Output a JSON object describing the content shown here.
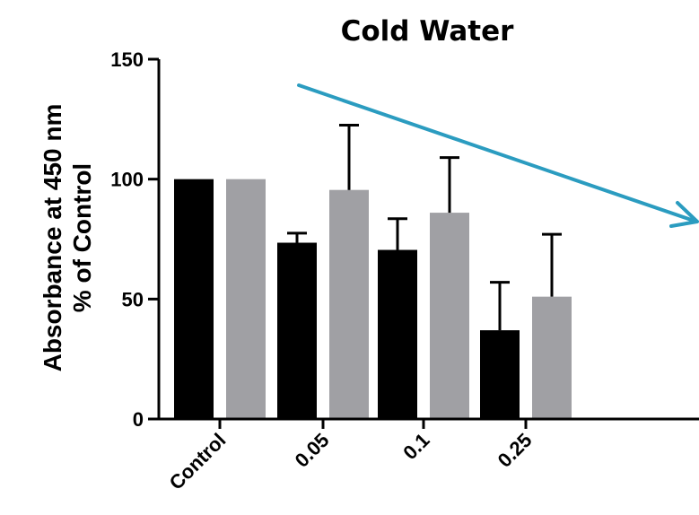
{
  "chart_data": {
    "type": "bar",
    "title": "Cold Water",
    "ylabel_lines": [
      "Absorbance at 450 nm",
      "% of Control"
    ],
    "xlabel": "",
    "categories": [
      "Control",
      "0.05",
      "0.1",
      "0.25"
    ],
    "series": [
      {
        "color": "#000000",
        "values": [
          100,
          73.5,
          70.5,
          37
        ],
        "errors": [
          0,
          4,
          13,
          20
        ]
      },
      {
        "color": "#a0a0a4",
        "values": [
          100,
          95.5,
          86,
          51
        ],
        "errors": [
          0,
          27,
          23,
          26
        ]
      }
    ],
    "ylim": [
      0,
      150
    ],
    "yticks": [
      0,
      50,
      100,
      150
    ],
    "ytick_labels": [
      "0",
      "50",
      "100",
      "150"
    ],
    "grid": false,
    "legend": "none",
    "annotation": {
      "type": "trend-arrow",
      "direction": "decreasing",
      "color": "#2b9cc0"
    }
  }
}
